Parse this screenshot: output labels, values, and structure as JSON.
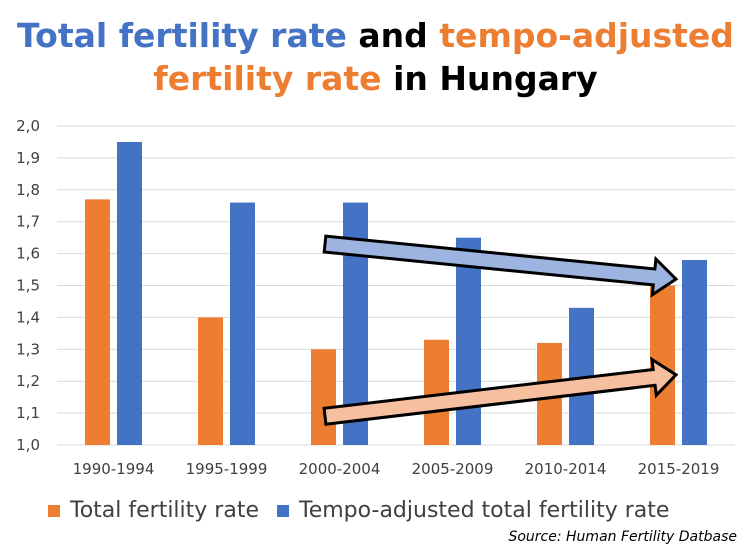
{
  "title": {
    "part1": "Total fertility rate",
    "part2": "and",
    "part3": "tempo-adjusted fertility rate",
    "part4": "in Hungary"
  },
  "colors": {
    "tfr": "#ED7D31",
    "tempo": "#4472C4",
    "arrow_blue_fill": "#9DB4E0",
    "arrow_orange_fill": "#F6BFA0"
  },
  "source": "Source: Human Fertility Datbase",
  "chart_data": {
    "type": "bar",
    "categories": [
      "1990-1994",
      "1995-1999",
      "2000-2004",
      "2005-2009",
      "2010-2014",
      "2015-2019"
    ],
    "series": [
      {
        "name": "Total fertility rate",
        "values": [
          1.77,
          1.4,
          1.3,
          1.33,
          1.32,
          1.5
        ]
      },
      {
        "name": "Tempo-adjusted total fertility rate",
        "values": [
          1.95,
          1.76,
          1.76,
          1.65,
          1.43,
          1.58
        ]
      }
    ],
    "ylim": [
      1.0,
      2.0
    ],
    "yticks": [
      "1,0",
      "1,1",
      "1,2",
      "1,3",
      "1,4",
      "1,5",
      "1,6",
      "1,7",
      "1,8",
      "1,9",
      "2,0"
    ],
    "grid": true,
    "legend": "bottom",
    "annotations": [
      {
        "type": "arrow",
        "color": "blue",
        "from": {
          "x": 2,
          "y": 1.63
        },
        "to": {
          "x": 5,
          "y": 1.52
        }
      },
      {
        "type": "arrow",
        "color": "orange",
        "from": {
          "x": 2,
          "y": 1.09
        },
        "to": {
          "x": 5,
          "y": 1.22
        }
      }
    ]
  }
}
